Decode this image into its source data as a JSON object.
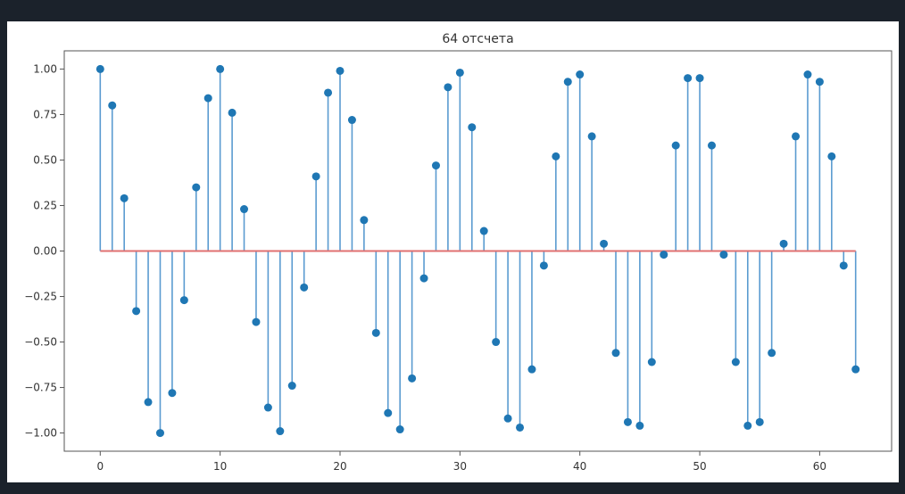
{
  "chart_data": {
    "type": "stem",
    "title": "64 отсчета",
    "xlabel": "",
    "ylabel": "",
    "xlim": [
      -3,
      66
    ],
    "ylim": [
      -1.1,
      1.1
    ],
    "x_ticks": [
      0,
      10,
      20,
      30,
      40,
      50,
      60
    ],
    "x_tick_labels": [
      "0",
      "10",
      "20",
      "30",
      "40",
      "50",
      "60"
    ],
    "y_ticks": [
      1.0,
      0.75,
      0.5,
      0.25,
      0.0,
      -0.25,
      -0.5,
      -0.75,
      -1.0
    ],
    "y_tick_labels": [
      "1.00",
      "0.75",
      "0.50",
      "0.25",
      "0.00",
      "−0.25",
      "−0.50",
      "−0.75",
      "−1.00"
    ],
    "grid": false,
    "colors": {
      "stem": "#5a9bd0",
      "marker": "#1f77b4",
      "baseline": "#e07070"
    },
    "series": [
      {
        "x": [
          0,
          1,
          2,
          3,
          4,
          5,
          6,
          7,
          8,
          9,
          10,
          11,
          12,
          13,
          14,
          15,
          16,
          17,
          18,
          19,
          20,
          21,
          22,
          23,
          24,
          25,
          26,
          27,
          28,
          29,
          30,
          31,
          32,
          33,
          34,
          35,
          36,
          37,
          38,
          39,
          40,
          41,
          42,
          43,
          44,
          45,
          46,
          47,
          48,
          49,
          50,
          51,
          52,
          53,
          54,
          55,
          56,
          57,
          58,
          59,
          60,
          61,
          62,
          63
        ],
        "values": [
          1.0,
          0.8,
          0.29,
          -0.33,
          -0.83,
          -1.0,
          -0.78,
          -0.27,
          0.35,
          0.84,
          1.0,
          0.76,
          0.23,
          -0.39,
          -0.86,
          -0.99,
          -0.74,
          -0.2,
          0.41,
          0.87,
          0.99,
          0.72,
          0.17,
          -0.45,
          -0.89,
          -0.98,
          -0.7,
          -0.15,
          0.47,
          0.9,
          0.98,
          0.68,
          0.11,
          -0.5,
          -0.92,
          -0.97,
          -0.65,
          -0.08,
          0.52,
          0.93,
          0.97,
          0.63,
          0.04,
          -0.56,
          -0.94,
          -0.96,
          -0.61,
          -0.02,
          0.58,
          0.95,
          0.95,
          0.58,
          -0.02,
          -0.61,
          -0.96,
          -0.94,
          -0.56,
          0.04,
          0.63,
          0.97,
          0.93,
          0.52,
          -0.08,
          -0.65
        ]
      }
    ]
  }
}
